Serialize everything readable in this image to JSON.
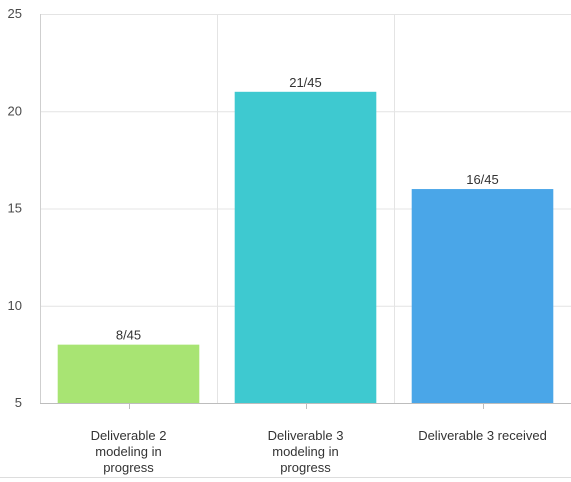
{
  "chart_data": {
    "type": "bar",
    "title": "",
    "xlabel": "",
    "ylabel": "",
    "ylim": [
      5,
      25
    ],
    "yticks": [
      5,
      10,
      15,
      20,
      25
    ],
    "grid": true,
    "categories": [
      "Deliverable 2 modeling in progress",
      "Deliverable 3 modeling in progress",
      "Deliverable 3 received"
    ],
    "category_label_lines": [
      [
        "Deliverable 2",
        "modeling in",
        "progress"
      ],
      [
        "Deliverable 3",
        "modeling in",
        "progress"
      ],
      [
        "Deliverable 3 received"
      ]
    ],
    "values": [
      8,
      21,
      16
    ],
    "data_labels": [
      "8/45",
      "21/45",
      "16/45"
    ],
    "colors": [
      "#a8e473",
      "#3ec9d0",
      "#4aa6e8"
    ]
  }
}
